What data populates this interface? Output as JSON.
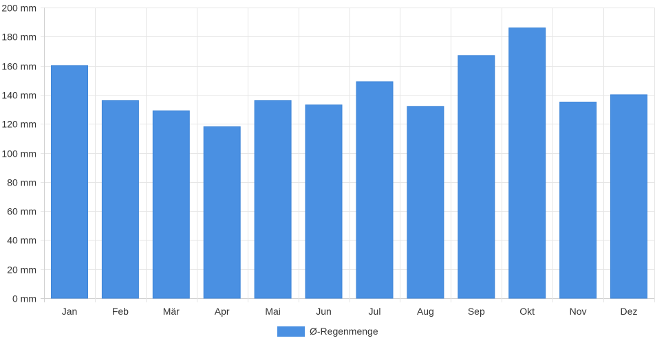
{
  "chart_data": {
    "type": "bar",
    "categories": [
      "Jan",
      "Feb",
      "Mär",
      "Apr",
      "Mai",
      "Jun",
      "Jul",
      "Aug",
      "Sep",
      "Okt",
      "Nov",
      "Dez"
    ],
    "series": [
      {
        "name": "Ø-Regenmenge",
        "values": [
          160,
          136,
          129,
          118,
          136,
          133,
          149,
          132,
          167,
          186,
          135,
          140
        ],
        "color": "#4a90e2"
      }
    ],
    "y_unit": "mm",
    "y_ticks": [
      0,
      20,
      40,
      60,
      80,
      100,
      120,
      140,
      160,
      180,
      200
    ],
    "ylim": [
      0,
      200
    ],
    "grid": true,
    "legend_position": "bottom-center"
  }
}
